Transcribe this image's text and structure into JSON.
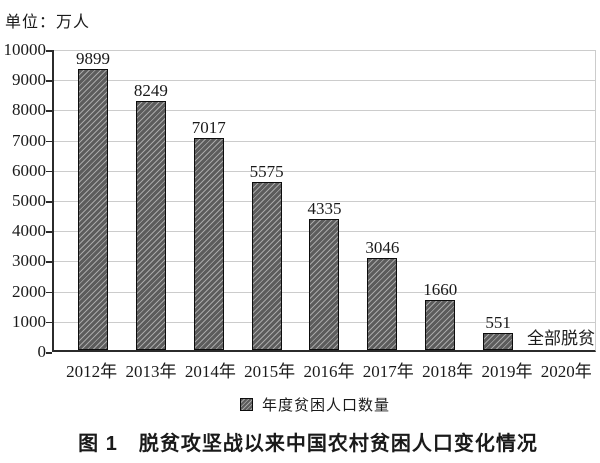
{
  "unit_label": "单位：万人",
  "figure_caption": "图 1　脱贫攻坚战以来中国农村贫困人口变化情况",
  "legend": {
    "swatch_icon": "hatched-square",
    "label": "年度贫困人口数量"
  },
  "colors": {
    "background": "#ffffff",
    "bar_fill": "#5c5c5c",
    "bar_hatch": "#a8a8a8",
    "bar_border": "#0d0d0d",
    "gridline": "#cccccc",
    "axis": "#2b2b2b",
    "text": "#1a1a1a"
  },
  "chart_data": {
    "type": "bar",
    "title": "图 1　脱贫攻坚战以来中国农村贫困人口变化情况",
    "unit": "万人",
    "unit_label": "单位：万人",
    "categories": [
      "2012年",
      "2013年",
      "2014年",
      "2015年",
      "2016年",
      "2017年",
      "2018年",
      "2019年",
      "2020年"
    ],
    "values": [
      9899,
      8249,
      7017,
      5575,
      4335,
      3046,
      1660,
      551,
      null
    ],
    "bar_value_labels": [
      "9899",
      "8249",
      "7017",
      "5575",
      "4335",
      "3046",
      "1660",
      "551"
    ],
    "annotations": [
      {
        "category": "2020年",
        "text": "全部脱贫",
        "position": "above-baseline"
      }
    ],
    "xlabel": "",
    "ylabel": "",
    "ylim": [
      0,
      10000
    ],
    "ytick_step": 1000,
    "yticks": [
      0,
      1000,
      2000,
      3000,
      4000,
      5000,
      6000,
      7000,
      8000,
      9000,
      10000
    ],
    "grid": true,
    "hatch": "/",
    "legend_entries": [
      "年度贫困人口数量"
    ],
    "legend_position": "bottom",
    "bar_labels_shown": true
  }
}
